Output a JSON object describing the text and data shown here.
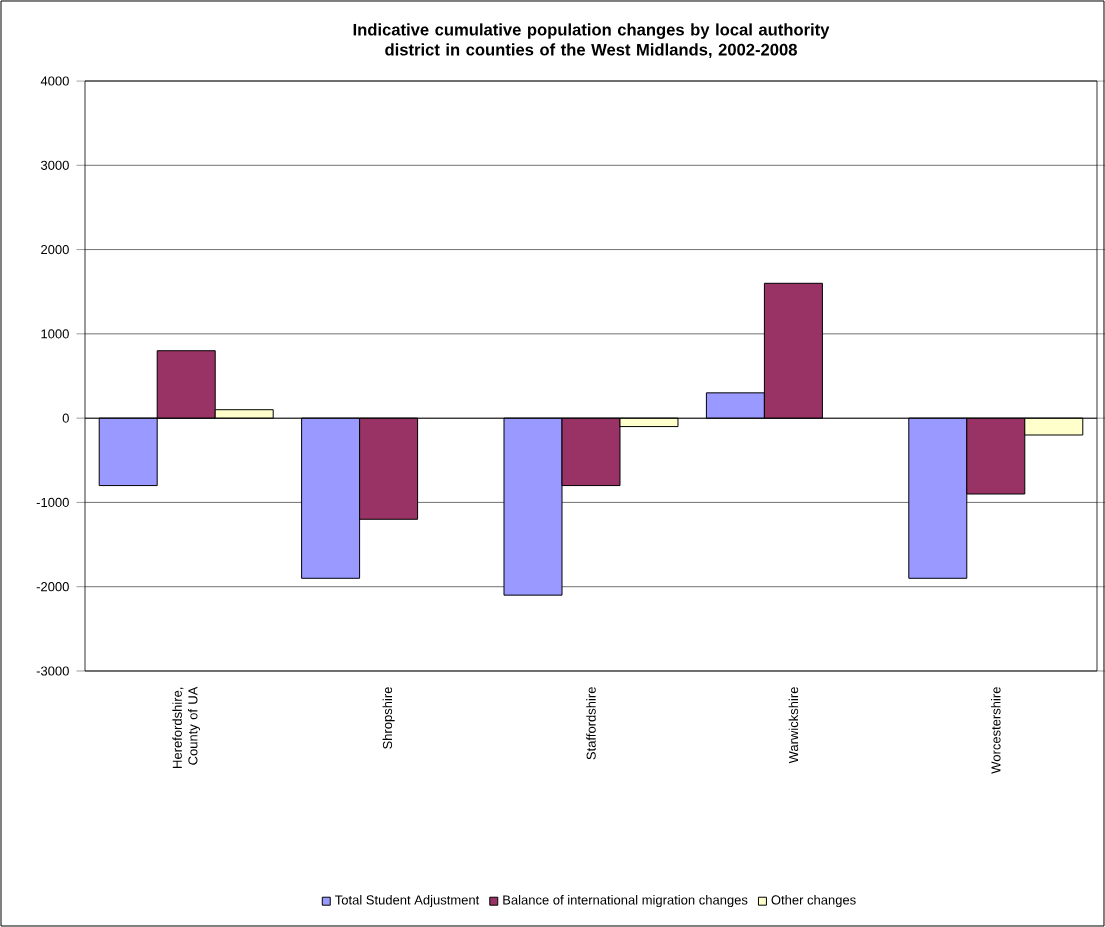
{
  "chart_data": {
    "type": "bar",
    "title": "Indicative cumulative population changes by local authority district in counties of the West Midlands, 2002-2008",
    "categories": [
      "Herefordshire, County of UA",
      "Shropshire",
      "Staffordshire",
      "Warwickshire",
      "Worcestershire"
    ],
    "series": [
      {
        "name": "Total Student Adjustment",
        "color": "#9999ff",
        "values": [
          -800,
          -1900,
          -2100,
          300,
          -1900
        ]
      },
      {
        "name": "Balance of international migration changes",
        "color": "#993366",
        "values": [
          800,
          -1200,
          -800,
          1600,
          -900
        ]
      },
      {
        "name": "Other changes",
        "color": "#ffffcc",
        "values": [
          100,
          null,
          -100,
          null,
          -200
        ]
      }
    ],
    "ylim": [
      -3000,
      4000
    ],
    "yticks": [
      -3000,
      -2000,
      -1000,
      0,
      1000,
      2000,
      3000,
      4000
    ],
    "grid": "y",
    "legend": "bottom"
  }
}
